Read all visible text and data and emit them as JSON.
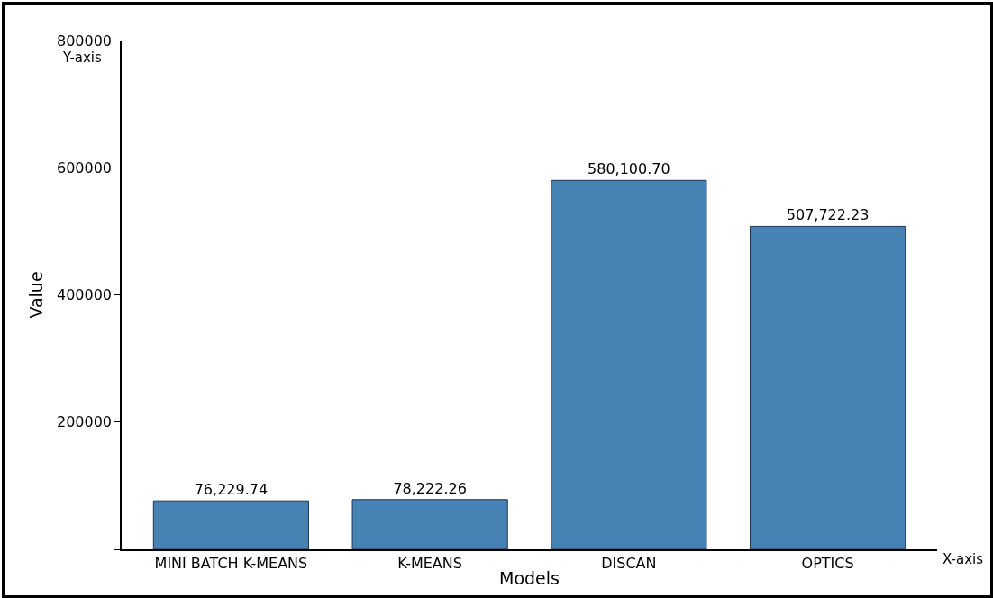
{
  "chart_data": {
    "type": "bar",
    "xlabel": "Models",
    "ylabel": "Value",
    "annotations": [
      "Y-axis",
      "X-axis"
    ],
    "categories": [
      "MINI BATCH K-MEANS",
      "K-MEANS",
      "DISCAN",
      "OPTICS"
    ],
    "values": [
      76229.74,
      78222.26,
      580100.7,
      507722.23
    ],
    "value_labels": [
      "76,229.74",
      "78,222.26",
      "580,100.70",
      "507,722.23"
    ],
    "color": "#4682b4",
    "ylim": [
      0,
      800000
    ],
    "yticks": [
      {
        "value": 0,
        "label": null
      },
      200000,
      400000,
      600000,
      800000
    ],
    "grid": false,
    "legend": false
  }
}
